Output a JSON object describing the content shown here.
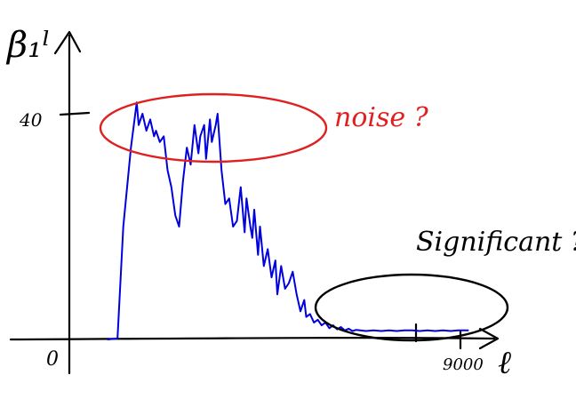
{
  "chart_data": {
    "type": "line",
    "title": "",
    "ylabel": "β₁ˡ",
    "xlabel": "ℓ",
    "y_tick_labels": [
      "40"
    ],
    "x_tick_labels": [
      "9000"
    ],
    "origin_label": "0",
    "y_tick_value": 40,
    "x_tick_value": 9000,
    "xlim": [
      0,
      10500
    ],
    "ylim": [
      0,
      55
    ],
    "grid": false,
    "series": [
      {
        "color": "#0000dd",
        "x": [
          1000,
          1250,
          1400,
          1600,
          1750,
          1800,
          1900,
          2000,
          2100,
          2200,
          2250,
          2350,
          2450,
          2550,
          2650,
          2750,
          2850,
          2950,
          3050,
          3150,
          3250,
          3350,
          3400,
          3500,
          3550,
          3650,
          3700,
          3800,
          3850,
          3950,
          4050,
          4150,
          4250,
          4350,
          4450,
          4550,
          4600,
          4700,
          4750,
          4800,
          4900,
          4950,
          5050,
          5150,
          5250,
          5350,
          5400,
          5500,
          5600,
          5700,
          5800,
          5900,
          6000,
          6100,
          6150,
          6250,
          6350,
          6450,
          6550,
          6650,
          6750,
          6850,
          6950,
          7050,
          7150,
          7250,
          7350,
          7450,
          7550,
          7700,
          7900,
          8100,
          8300,
          8500,
          8700,
          8900,
          9100,
          9300,
          9500,
          9700,
          9900,
          10100,
          10350
        ],
        "y": [
          0,
          0.2,
          20,
          34,
          42,
          38,
          40,
          37,
          39,
          36,
          37,
          35,
          36,
          30,
          27,
          22,
          20,
          28,
          34,
          31,
          38,
          33,
          36,
          38,
          32,
          39,
          35,
          38,
          40,
          30,
          24,
          25,
          20,
          21,
          27,
          19,
          25,
          20,
          18,
          23,
          15,
          20,
          13,
          16,
          11,
          14,
          8,
          13,
          9,
          10,
          12,
          8,
          5,
          7,
          4,
          4.5,
          3,
          3.5,
          2.5,
          3,
          2,
          2.5,
          1.8,
          2.2,
          1.6,
          1.9,
          1.5,
          1.7,
          1.6,
          1.5,
          1.6,
          1.5,
          1.6,
          1.5,
          1.6,
          1.6,
          1.5,
          1.6,
          1.5,
          1.6,
          1.5,
          1.6,
          1.6
        ]
      }
    ],
    "annotations": [
      {
        "text": "noise ?",
        "color": "#e02020",
        "shape": "ellipse"
      },
      {
        "text": "Significant ?",
        "color": "#000000",
        "shape": "ellipse"
      }
    ]
  }
}
